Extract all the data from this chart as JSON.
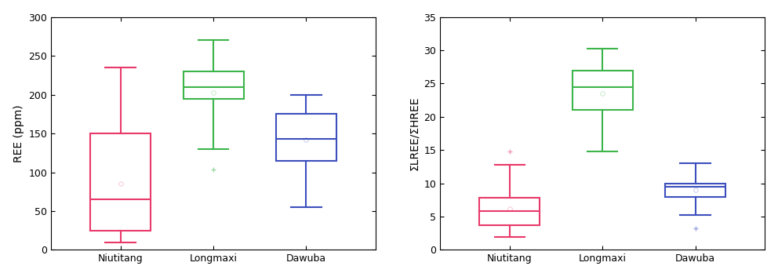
{
  "plot1": {
    "ylabel": "REE (ppm)",
    "ylim": [
      0,
      300
    ],
    "yticks": [
      0,
      50,
      100,
      150,
      200,
      250,
      300
    ],
    "categories": [
      "Niutitang",
      "Longmaxi",
      "Dawuba"
    ],
    "colors": [
      "#e8396a",
      "#3cb54a",
      "#3c4fbd"
    ],
    "boxes": [
      {
        "whislo": 10,
        "q1": 25,
        "med": 65,
        "q3": 150,
        "whishi": 235,
        "mean": 85,
        "fliers": []
      },
      {
        "whislo": 130,
        "q1": 195,
        "med": 210,
        "q3": 230,
        "whishi": 270,
        "mean": 203,
        "fliers": [
          104
        ]
      },
      {
        "whislo": 55,
        "q1": 115,
        "med": 143,
        "q3": 175,
        "whishi": 200,
        "mean": 142,
        "fliers": []
      }
    ]
  },
  "plot2": {
    "ylabel": "ΣLREE/ΣHREE",
    "ylim": [
      0,
      35
    ],
    "yticks": [
      0,
      5,
      10,
      15,
      20,
      25,
      30,
      35
    ],
    "categories": [
      "Niutitang",
      "Longmaxi",
      "Dawuba"
    ],
    "colors": [
      "#e8396a",
      "#3cb54a",
      "#3c4fbd"
    ],
    "boxes": [
      {
        "whislo": 2.0,
        "q1": 3.7,
        "med": 5.8,
        "q3": 7.8,
        "whishi": 12.8,
        "mean": 6.2,
        "fliers": [
          14.8
        ]
      },
      {
        "whislo": 14.8,
        "q1": 21.0,
        "med": 24.5,
        "q3": 27.0,
        "whishi": 30.3,
        "mean": 23.5,
        "fliers": []
      },
      {
        "whislo": 5.2,
        "q1": 8.0,
        "med": 9.5,
        "q3": 10.0,
        "whishi": 13.0,
        "mean": 9.0,
        "fliers": [
          3.2
        ]
      }
    ]
  },
  "bg_color": "#ffffff",
  "box_width": 0.65,
  "linewidth": 1.5
}
